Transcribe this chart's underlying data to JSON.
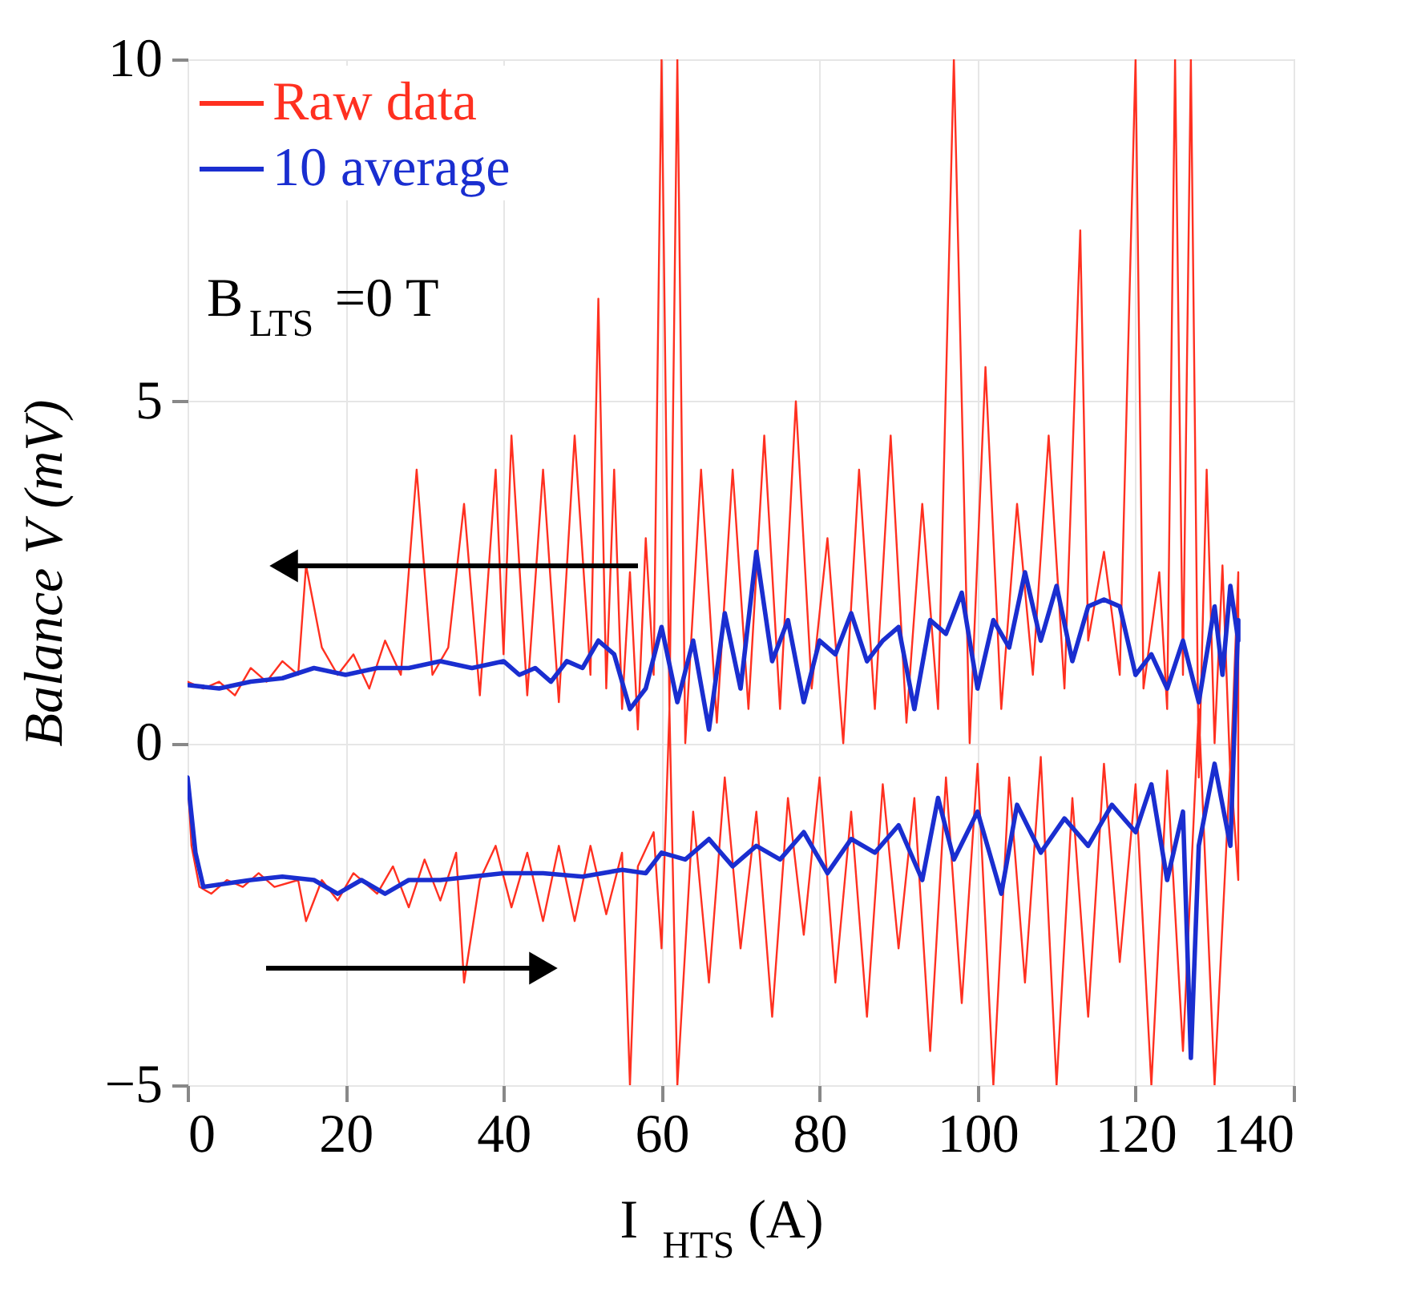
{
  "chart_data": {
    "type": "line",
    "xlabel": "I$_{HTS}$ (A)",
    "ylabel": "Balance V (mV)",
    "xlim": [
      0,
      140
    ],
    "xticks": [
      0,
      20,
      40,
      60,
      80,
      100,
      120,
      140
    ],
    "ylim": [
      -5,
      10
    ],
    "yticks": [
      -5,
      0,
      5,
      10
    ],
    "grid": true,
    "legend": "top left",
    "marker": "none",
    "line_style": "solid",
    "annotations": [
      "B$_{LTS}$=0 T"
    ],
    "series": [
      {
        "name": "Raw data",
        "color": "#ff3020",
        "x": [
          0,
          0.5,
          1.5,
          3,
          5,
          7,
          9,
          11,
          14,
          15,
          17,
          19,
          21,
          24,
          26,
          28,
          30,
          32,
          34,
          35,
          37,
          39,
          41,
          43,
          45,
          47,
          49,
          51,
          53,
          55,
          56,
          57,
          59,
          60,
          61,
          62,
          64,
          66,
          68,
          70,
          72,
          74,
          76,
          78,
          80,
          82,
          84,
          86,
          88,
          90,
          92,
          94,
          96,
          98,
          100,
          102,
          104,
          106,
          108,
          110,
          112,
          114,
          116,
          118,
          120,
          122,
          124,
          126,
          128,
          130,
          132,
          133,
          133,
          132,
          131,
          130,
          129,
          128,
          127,
          126,
          125,
          124,
          123,
          121,
          120,
          118,
          116,
          114,
          113,
          111,
          109,
          107,
          105,
          103,
          101,
          99,
          97,
          95,
          93,
          91,
          89,
          87,
          85,
          83,
          81,
          79,
          77,
          75,
          73,
          71,
          69,
          67,
          65,
          63,
          62,
          61,
          60,
          59,
          58,
          57,
          56,
          55,
          54,
          53,
          52,
          51,
          49,
          47,
          45,
          43,
          41,
          40,
          39,
          37,
          35,
          33,
          31,
          29,
          27,
          25,
          23,
          21,
          19,
          17,
          15,
          14,
          12,
          10,
          8,
          6,
          4,
          2,
          0
        ],
        "values": [
          -0.5,
          -1.5,
          -2.1,
          -2.2,
          -2.0,
          -2.1,
          -1.9,
          -2.1,
          -2.0,
          -2.6,
          -2.0,
          -2.3,
          -1.9,
          -2.2,
          -1.8,
          -2.4,
          -1.7,
          -2.3,
          -1.6,
          -3.5,
          -2.0,
          -1.5,
          -2.4,
          -1.6,
          -2.6,
          -1.5,
          -2.6,
          -1.5,
          -2.5,
          -1.6,
          -5,
          -1.8,
          -1.3,
          -3.0,
          0.5,
          -5,
          -1.0,
          -3.5,
          -0.5,
          -3.0,
          -1.0,
          -4.0,
          -0.8,
          -2.8,
          -0.5,
          -3.5,
          -1.0,
          -4.0,
          -0.6,
          -3.0,
          -0.8,
          -4.5,
          -0.5,
          -3.8,
          -0.3,
          -5,
          -0.5,
          -3.5,
          -0.2,
          -5,
          -0.8,
          -4.0,
          -0.3,
          -3.2,
          -0.6,
          -5,
          -0.4,
          -4.5,
          0.5,
          -5,
          -0.3,
          -2.0,
          2.5,
          -0.5,
          2.6,
          0.0,
          4.0,
          -0.5,
          10,
          1.0,
          10,
          0.5,
          2.5,
          0.8,
          10,
          1.0,
          2.8,
          1.5,
          7.5,
          0.8,
          4.5,
          1.0,
          3.5,
          0.5,
          5.5,
          0.0,
          10,
          0.5,
          3.5,
          0.3,
          4.5,
          0.5,
          4.0,
          0.0,
          3.0,
          0.8,
          5.0,
          0.5,
          4.5,
          0.5,
          4.0,
          0.3,
          4.0,
          0.0,
          10,
          0.5,
          10,
          1.0,
          3.0,
          0.2,
          2.5,
          0.5,
          4.0,
          0.8,
          6.5,
          1.0,
          4.5,
          0.6,
          4.0,
          0.7,
          4.5,
          1.3,
          4.0,
          0.7,
          3.5,
          1.4,
          1.0,
          4.0,
          1.0,
          1.5,
          0.8,
          1.3,
          1.0,
          1.4,
          2.6,
          1.0,
          1.2,
          0.9,
          1.1,
          0.7,
          0.9,
          0.8,
          0.9
        ]
      },
      {
        "name": "10 average",
        "color": "#1a2ed0",
        "x": [
          0,
          1,
          2,
          5,
          8,
          12,
          16,
          19,
          22,
          25,
          28,
          32,
          36,
          40,
          45,
          50,
          55,
          58,
          60,
          63,
          66,
          69,
          72,
          75,
          78,
          81,
          84,
          87,
          90,
          93,
          95,
          97,
          100,
          103,
          105,
          108,
          111,
          114,
          117,
          120,
          122,
          124,
          126,
          127,
          128,
          130,
          132,
          133,
          133,
          132,
          131,
          130,
          128,
          126,
          124,
          122,
          120,
          118,
          116,
          114,
          112,
          110,
          108,
          106,
          104,
          102,
          100,
          98,
          96,
          94,
          92,
          90,
          88,
          86,
          84,
          82,
          80,
          78,
          76,
          74,
          72,
          70,
          68,
          66,
          64,
          62,
          60,
          58,
          56,
          54,
          52,
          50,
          48,
          46,
          44,
          42,
          40,
          36,
          32,
          28,
          24,
          20,
          16,
          12,
          8,
          4,
          0
        ],
        "values": [
          -0.5,
          -1.6,
          -2.1,
          -2.05,
          -2.0,
          -1.95,
          -2.0,
          -2.2,
          -2.0,
          -2.2,
          -2.0,
          -2.0,
          -1.95,
          -1.9,
          -1.9,
          -1.95,
          -1.85,
          -1.9,
          -1.6,
          -1.7,
          -1.4,
          -1.8,
          -1.5,
          -1.7,
          -1.3,
          -1.9,
          -1.4,
          -1.6,
          -1.2,
          -2.0,
          -0.8,
          -1.7,
          -1.0,
          -2.2,
          -0.9,
          -1.6,
          -1.1,
          -1.5,
          -0.9,
          -1.3,
          -0.6,
          -2.0,
          -1.0,
          -4.6,
          -1.5,
          -0.3,
          -1.5,
          1.8,
          1.5,
          2.3,
          1.0,
          2.0,
          0.6,
          1.5,
          0.8,
          1.3,
          1.0,
          2.0,
          2.1,
          2.0,
          1.2,
          2.3,
          1.5,
          2.5,
          1.4,
          1.8,
          0.8,
          2.2,
          1.6,
          1.8,
          0.5,
          1.7,
          1.5,
          1.2,
          1.9,
          1.3,
          1.5,
          0.6,
          1.8,
          1.2,
          2.8,
          0.8,
          1.9,
          0.2,
          1.5,
          0.6,
          1.7,
          0.8,
          0.5,
          1.3,
          1.5,
          1.1,
          1.2,
          0.9,
          1.1,
          1.0,
          1.2,
          1.1,
          1.2,
          1.1,
          1.1,
          1.0,
          1.1,
          0.95,
          0.9,
          0.8,
          0.85
        ]
      }
    ]
  }
}
